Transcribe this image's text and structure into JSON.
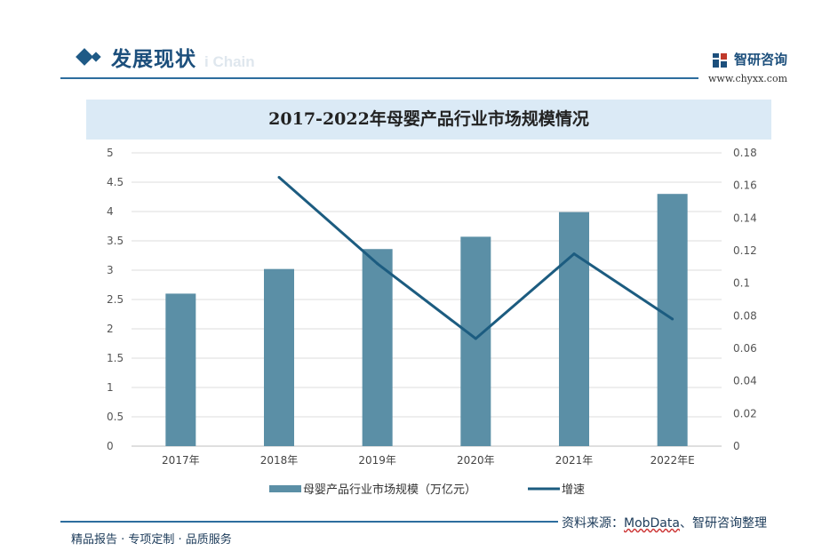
{
  "header": {
    "section_title": "发展现状",
    "ghost_text": "i Chain",
    "brand_name": "智研咨询",
    "brand_url": "www.chyxx.com"
  },
  "colors": {
    "bar": "#5b8fa6",
    "line": "#1c5c80",
    "accent": "#1c4f7c",
    "title_band": "#dbeaf6"
  },
  "chart_data": {
    "type": "bar",
    "title": "2017-2022年母婴产品行业市场规模情况",
    "categories": [
      "2017年",
      "2018年",
      "2019年",
      "2020年",
      "2021年",
      "2022年E"
    ],
    "series": [
      {
        "name": "母婴产品行业市场规模（万亿元）",
        "type": "bar",
        "axis": "left",
        "values": [
          2.6,
          3.02,
          3.36,
          3.57,
          3.99,
          4.3
        ]
      },
      {
        "name": "增速",
        "type": "line",
        "axis": "right",
        "values": [
          null,
          0.165,
          0.112,
          0.066,
          0.118,
          0.078
        ]
      }
    ],
    "y_left": {
      "ylim": [
        0,
        5
      ],
      "ticks": [
        "0",
        "0.5",
        "1",
        "1.5",
        "2",
        "2.5",
        "3",
        "3.5",
        "4",
        "4.5",
        "5"
      ]
    },
    "y_right": {
      "ylim": [
        0,
        0.18
      ],
      "ticks": [
        "0",
        "0.02",
        "0.04",
        "0.06",
        "0.08",
        "0.1",
        "0.12",
        "0.14",
        "0.16",
        "0.18"
      ]
    },
    "grid": true,
    "legend": "bottom"
  },
  "footer": {
    "source_label": "资料来源：",
    "source_mob": "MobData",
    "source_rest": "、智研咨询整理",
    "tagline": "精品报告 · 专项定制 · 品质服务"
  }
}
